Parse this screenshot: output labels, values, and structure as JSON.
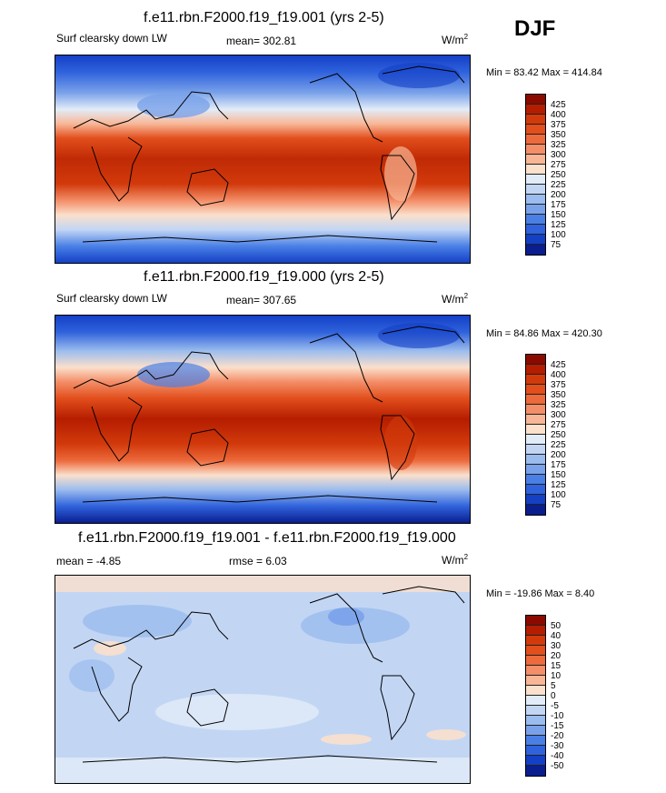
{
  "season": "DJF",
  "panels": [
    {
      "title": "f.e11.rbn.F2000.f19_f19.001 (yrs 2-5)",
      "field": "Surf clearsky down LW",
      "mean": "mean= 302.81",
      "units": "W/m",
      "units_sup": "2",
      "minmax": "Min =  83.42 Max = 414.84",
      "colorbar_labels": [
        "425",
        "400",
        "375",
        "350",
        "325",
        "300",
        "275",
        "250",
        "225",
        "200",
        "175",
        "150",
        "125",
        "100",
        "75"
      ],
      "colorbar_colors": [
        "#8b0a00",
        "#b51d00",
        "#d23a0c",
        "#e24e1c",
        "#ec6a3c",
        "#f38e68",
        "#f8b696",
        "#fbe0cc",
        "#e2ecf8",
        "#c2d6f4",
        "#9bbcee",
        "#7aa2ea",
        "#4a80e6",
        "#2f62dc",
        "#1440c6",
        "#0a1e90"
      ]
    },
    {
      "title": "f.e11.rbn.F2000.f19_f19.000 (yrs 2-5)",
      "field": "Surf clearsky down LW",
      "mean": "mean= 307.65",
      "units": "W/m",
      "units_sup": "2",
      "minmax": "Min =  84.86 Max = 420.30",
      "colorbar_labels": [
        "425",
        "400",
        "375",
        "350",
        "325",
        "300",
        "275",
        "250",
        "225",
        "200",
        "175",
        "150",
        "125",
        "100",
        "75"
      ],
      "colorbar_colors": [
        "#8b0a00",
        "#b51d00",
        "#d23a0c",
        "#e24e1c",
        "#ec6a3c",
        "#f38e68",
        "#f8b696",
        "#fbe0cc",
        "#e2ecf8",
        "#c2d6f4",
        "#9bbcee",
        "#7aa2ea",
        "#4a80e6",
        "#2f62dc",
        "#1440c6",
        "#0a1e90"
      ]
    },
    {
      "title": "f.e11.rbn.F2000.f19_f19.001 - f.e11.rbn.F2000.f19_f19.000",
      "mean": "mean =  -4.85",
      "rmse": "rmse =   6.03",
      "units": "W/m",
      "units_sup": "2",
      "minmax": "Min = -19.86 Max =   8.40",
      "colorbar_labels": [
        "50",
        "40",
        "30",
        "20",
        "15",
        "10",
        "5",
        "0",
        "-5",
        "-10",
        "-15",
        "-20",
        "-30",
        "-40",
        "-50"
      ],
      "colorbar_colors": [
        "#8b0a00",
        "#b51d00",
        "#d23a0c",
        "#e24e1c",
        "#ec6a3c",
        "#f38e68",
        "#f8b696",
        "#fbe0cc",
        "#e2ecf8",
        "#c2d6f4",
        "#9bbcee",
        "#7aa2ea",
        "#4a80e6",
        "#2f62dc",
        "#1440c6",
        "#0a1e90"
      ]
    }
  ]
}
